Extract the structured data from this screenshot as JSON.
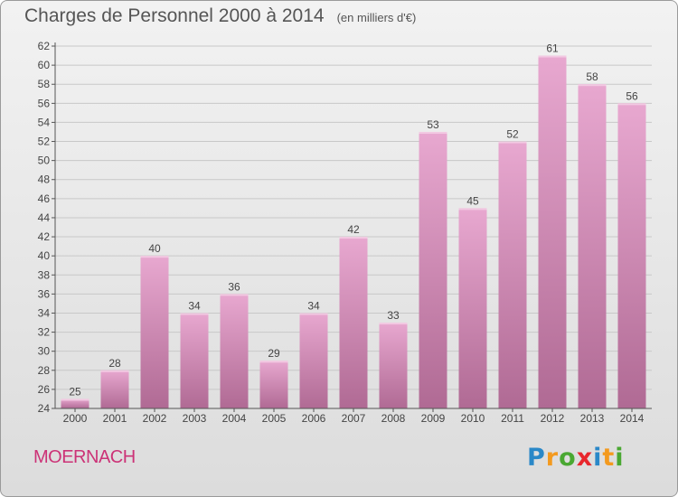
{
  "title": "Charges de Personnel 2000 à 2014",
  "subtitle": "(en milliers d'€)",
  "commune": "MOERNACH",
  "logo": {
    "letters": [
      "P",
      "r",
      "o",
      "x",
      "i",
      "t",
      "i"
    ],
    "colors": [
      "#2a88c8",
      "#f39a1f",
      "#4aa832",
      "#e8262c",
      "#2a88c8",
      "#f39a1f",
      "#4aa832"
    ]
  },
  "colors": {
    "bar_top": "#e8a8d0",
    "bar_bottom": "#b06a94",
    "grid": "#c8c8c8",
    "axis": "#555555",
    "text": "#444444"
  },
  "chart_data": {
    "type": "bar",
    "categories": [
      "2000",
      "2001",
      "2002",
      "2003",
      "2004",
      "2005",
      "2006",
      "2007",
      "2008",
      "2009",
      "2010",
      "2011",
      "2012",
      "2013",
      "2014"
    ],
    "values": [
      25,
      28,
      40,
      34,
      36,
      29,
      34,
      42,
      33,
      53,
      45,
      52,
      61,
      58,
      56
    ],
    "ylim": [
      24,
      62
    ],
    "yticks": [
      24,
      26,
      28,
      30,
      32,
      34,
      36,
      38,
      40,
      42,
      44,
      46,
      48,
      50,
      52,
      54,
      56,
      58,
      60,
      62
    ],
    "grid": true,
    "data_labels": true
  }
}
